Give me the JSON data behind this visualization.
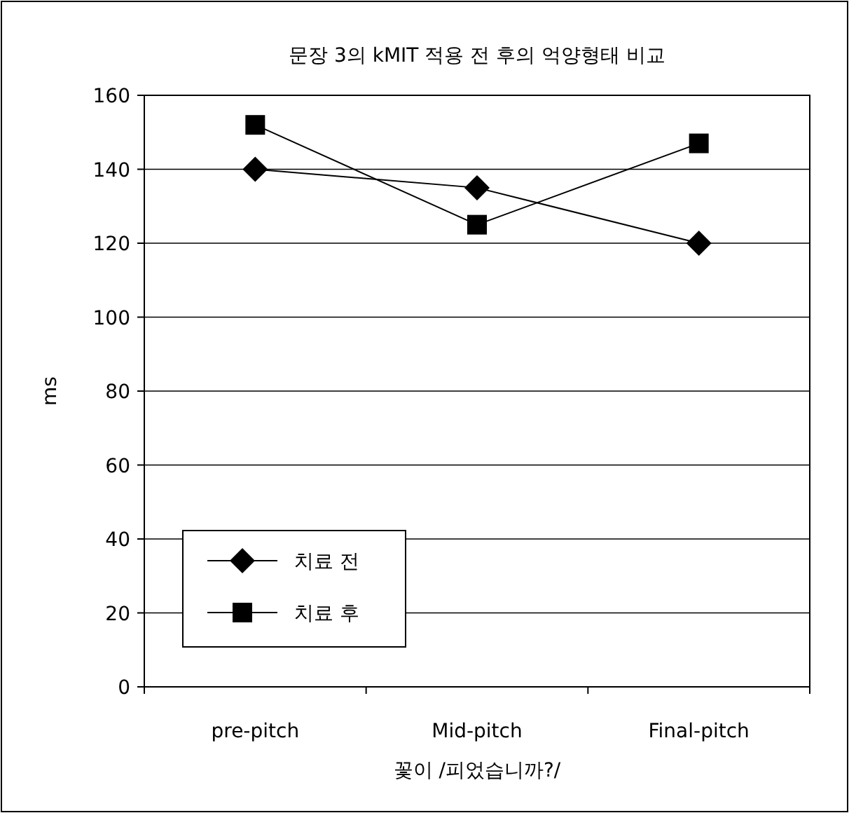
{
  "chart_data": {
    "type": "line",
    "title": "문장 3의 kMIT 적용 전 후의 억양형태 비교",
    "xlabel": "꽃이 /피었습니까?/",
    "ylabel": "ms",
    "categories": [
      "pre-pitch",
      "Mid-pitch",
      "Final-pitch"
    ],
    "series": [
      {
        "name": "치료 전",
        "color": "#000000",
        "marker": "diamond",
        "values": [
          140,
          135,
          120
        ]
      },
      {
        "name": "치료 후",
        "color": "#000000",
        "marker": "square",
        "values": [
          152,
          125,
          147
        ]
      }
    ],
    "ylim": [
      0,
      160
    ],
    "yticks": [
      0,
      20,
      40,
      60,
      80,
      100,
      120,
      140,
      160
    ],
    "grid": "y",
    "legend": "bottom left"
  }
}
